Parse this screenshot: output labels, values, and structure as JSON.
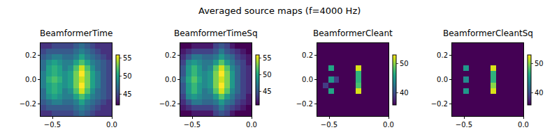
{
  "title": "Averaged source maps (f=4000 Hz)",
  "chart_data": [
    {
      "type": "heatmap",
      "title": "BeamformerTime",
      "color": "Viridis",
      "x": [
        -0.577,
        -0.531,
        -0.485,
        -0.438,
        -0.392,
        -0.346,
        -0.3,
        -0.254,
        -0.208,
        -0.162,
        -0.115,
        -0.069,
        -0.023
      ],
      "y": [
        -0.277,
        -0.231,
        -0.185,
        -0.138,
        -0.092,
        -0.046,
        0,
        0.046,
        0.092,
        0.138,
        0.185,
        0.231,
        0.277
      ],
      "xlim": [
        -0.6,
        0
      ],
      "ylim": [
        -0.3,
        0.3
      ],
      "xticks": [
        {
          "value": -0.5,
          "label": "−0.5"
        },
        {
          "value": 0,
          "label": "0.0"
        }
      ],
      "yticks": [
        {
          "value": -0.2,
          "label": "−0.2"
        },
        {
          "value": 0,
          "label": "0.0"
        },
        0.2
      ],
      "zlim": [
        42,
        56
      ],
      "zticks": [
        45,
        50,
        55
      ],
      "z": [
        [
          44,
          44,
          45,
          45,
          45,
          45,
          46,
          47,
          46,
          45,
          44,
          44,
          44
        ],
        [
          45,
          46,
          46,
          46,
          46,
          46,
          47,
          48,
          47,
          46,
          45,
          44,
          44
        ],
        [
          46,
          47,
          48,
          48,
          47,
          47,
          48,
          50,
          48,
          47,
          46,
          45,
          44
        ],
        [
          47,
          49,
          50,
          49,
          48,
          48,
          50,
          52,
          50,
          48,
          47,
          46,
          45
        ],
        [
          47,
          50,
          51,
          50,
          48,
          49,
          52,
          55,
          52,
          49,
          47,
          46,
          45
        ],
        [
          48,
          50,
          51,
          50,
          49,
          50,
          53,
          56,
          53,
          50,
          48,
          46,
          45
        ],
        [
          48,
          51,
          52,
          51,
          49,
          50,
          53,
          55,
          53,
          50,
          48,
          46,
          45
        ],
        [
          48,
          50,
          51,
          50,
          49,
          50,
          53,
          56,
          53,
          50,
          48,
          46,
          45
        ],
        [
          47,
          50,
          51,
          50,
          48,
          49,
          52,
          55,
          52,
          49,
          47,
          46,
          45
        ],
        [
          47,
          49,
          50,
          49,
          48,
          48,
          50,
          52,
          50,
          48,
          47,
          46,
          45
        ],
        [
          46,
          47,
          48,
          48,
          47,
          47,
          48,
          50,
          48,
          47,
          46,
          45,
          44
        ],
        [
          45,
          46,
          46,
          46,
          46,
          46,
          47,
          48,
          47,
          46,
          45,
          44,
          44
        ],
        [
          44,
          44,
          45,
          45,
          45,
          45,
          46,
          47,
          46,
          45,
          44,
          44,
          44
        ]
      ]
    },
    {
      "type": "heatmap",
      "title": "BeamformerTimeSq",
      "color": "Viridis",
      "x": [
        -0.577,
        -0.531,
        -0.485,
        -0.438,
        -0.392,
        -0.346,
        -0.3,
        -0.254,
        -0.208,
        -0.162,
        -0.115,
        -0.069,
        -0.023
      ],
      "y": [
        -0.277,
        -0.231,
        -0.185,
        -0.138,
        -0.092,
        -0.046,
        0,
        0.046,
        0.092,
        0.138,
        0.185,
        0.231,
        0.277
      ],
      "xlim": [
        -0.6,
        0
      ],
      "ylim": [
        -0.3,
        0.3
      ],
      "xticks": [
        {
          "value": -0.5,
          "label": "−0.5"
        },
        {
          "value": 0,
          "label": "0.0"
        }
      ],
      "yticks": [
        {
          "value": -0.2,
          "label": "−0.2"
        },
        {
          "value": 0,
          "label": "0.0"
        },
        0.2
      ],
      "zlim": [
        41,
        56
      ],
      "zticks": [
        45,
        50,
        55
      ],
      "z": [
        [
          41,
          41,
          42,
          42,
          42,
          42,
          44,
          45,
          44,
          42,
          41,
          41,
          41
        ],
        [
          42,
          43,
          44,
          44,
          44,
          44,
          45,
          47,
          45,
          44,
          43,
          42,
          41
        ],
        [
          43,
          45,
          47,
          47,
          46,
          46,
          47,
          49,
          47,
          46,
          44,
          43,
          42
        ],
        [
          44,
          48,
          49,
          48,
          47,
          47,
          49,
          52,
          49,
          47,
          45,
          44,
          42
        ],
        [
          45,
          49,
          51,
          49,
          47,
          48,
          52,
          55,
          52,
          48,
          46,
          44,
          43
        ],
        [
          45,
          49,
          51,
          49,
          48,
          49,
          53,
          56,
          53,
          49,
          46,
          44,
          43
        ],
        [
          46,
          50,
          52,
          50,
          48,
          49,
          53,
          55,
          53,
          49,
          46,
          44,
          43
        ],
        [
          45,
          49,
          51,
          49,
          48,
          49,
          53,
          56,
          53,
          49,
          46,
          44,
          43
        ],
        [
          45,
          49,
          51,
          49,
          47,
          48,
          52,
          55,
          52,
          48,
          46,
          44,
          43
        ],
        [
          44,
          48,
          49,
          48,
          47,
          47,
          49,
          52,
          49,
          47,
          45,
          44,
          42
        ],
        [
          43,
          45,
          47,
          47,
          46,
          46,
          47,
          49,
          47,
          46,
          44,
          43,
          42
        ],
        [
          42,
          43,
          44,
          44,
          44,
          44,
          45,
          47,
          45,
          44,
          43,
          42,
          41
        ],
        [
          41,
          41,
          42,
          42,
          42,
          42,
          44,
          45,
          44,
          42,
          41,
          41,
          41
        ]
      ]
    },
    {
      "type": "heatmap",
      "title": "BeamformerCleant",
      "color": "Viridis",
      "x": [
        -0.577,
        -0.531,
        -0.485,
        -0.438,
        -0.392,
        -0.346,
        -0.3,
        -0.254,
        -0.208,
        -0.162,
        -0.115,
        -0.069,
        -0.023
      ],
      "y": [
        -0.277,
        -0.231,
        -0.185,
        -0.138,
        -0.092,
        -0.046,
        0,
        0.046,
        0.092,
        0.138,
        0.185,
        0.231,
        0.277
      ],
      "xlim": [
        -0.6,
        0
      ],
      "ylim": [
        -0.3,
        0.3
      ],
      "xticks": [
        {
          "value": -0.5,
          "label": "−0.5"
        },
        {
          "value": 0,
          "label": "0.0"
        }
      ],
      "yticks": [
        {
          "value": -0.2,
          "label": "−0.2"
        },
        {
          "value": 0,
          "label": "0.0"
        },
        0.2
      ],
      "zlim": [
        36,
        53
      ],
      "zticks": [
        40,
        50
      ],
      "z": [
        [
          36,
          36,
          36,
          36,
          36,
          36,
          36,
          36,
          36,
          36,
          36,
          36,
          36
        ],
        [
          36,
          36,
          36,
          36,
          36,
          36,
          36,
          36,
          36,
          36,
          36,
          36,
          36
        ],
        [
          36,
          36,
          36,
          36,
          36,
          36,
          36,
          36,
          36,
          36,
          36,
          36,
          36
        ],
        [
          36,
          36,
          36,
          36,
          36,
          36,
          36,
          36,
          36,
          36,
          36,
          36,
          36
        ],
        [
          36,
          36,
          46,
          36,
          36,
          36,
          36,
          52,
          36,
          36,
          36,
          36,
          36
        ],
        [
          36,
          39,
          36,
          36,
          36,
          36,
          36,
          48,
          36,
          36,
          36,
          36,
          36
        ],
        [
          36,
          36,
          45,
          39,
          36,
          36,
          36,
          47,
          36,
          36,
          36,
          36,
          36
        ],
        [
          36,
          36,
          36,
          36,
          36,
          36,
          36,
          47,
          36,
          36,
          36,
          36,
          36
        ],
        [
          36,
          36,
          46,
          36,
          36,
          36,
          36,
          52,
          36,
          36,
          36,
          36,
          36
        ],
        [
          36,
          36,
          36,
          36,
          36,
          36,
          36,
          36,
          36,
          36,
          36,
          36,
          36
        ],
        [
          36,
          36,
          36,
          36,
          36,
          36,
          36,
          36,
          36,
          36,
          36,
          36,
          36
        ],
        [
          36,
          36,
          36,
          36,
          36,
          36,
          36,
          36,
          36,
          36,
          36,
          36,
          36
        ],
        [
          36,
          36,
          36,
          36,
          36,
          36,
          36,
          36,
          36,
          36,
          36,
          36,
          36
        ]
      ]
    },
    {
      "type": "heatmap",
      "title": "BeamformerCleantSq",
      "color": "Viridis",
      "x": [
        -0.577,
        -0.531,
        -0.485,
        -0.438,
        -0.392,
        -0.346,
        -0.3,
        -0.254,
        -0.208,
        -0.162,
        -0.115,
        -0.069,
        -0.023
      ],
      "y": [
        -0.277,
        -0.231,
        -0.185,
        -0.138,
        -0.092,
        -0.046,
        0,
        0.046,
        0.092,
        0.138,
        0.185,
        0.231,
        0.277
      ],
      "xlim": [
        -0.6,
        0
      ],
      "ylim": [
        -0.3,
        0.3
      ],
      "xticks": [
        {
          "value": -0.5,
          "label": "−0.5"
        },
        {
          "value": 0,
          "label": "0.0"
        }
      ],
      "yticks": [
        {
          "value": -0.2,
          "label": "−0.2"
        },
        {
          "value": 0,
          "label": "0.0"
        },
        0.2
      ],
      "zlim": [
        36,
        53
      ],
      "zticks": [
        40,
        50
      ],
      "z": [
        [
          36,
          36,
          36,
          36,
          36,
          36,
          36,
          36,
          36,
          36,
          36,
          36,
          36
        ],
        [
          36,
          36,
          36,
          36,
          36,
          36,
          36,
          36,
          36,
          36,
          36,
          36,
          36
        ],
        [
          36,
          36,
          36,
          36,
          36,
          36,
          36,
          36,
          36,
          36,
          36,
          36,
          36
        ],
        [
          36,
          36,
          36,
          36,
          36,
          36,
          36,
          36,
          36,
          36,
          36,
          36,
          36
        ],
        [
          36,
          36,
          45,
          36,
          36,
          36,
          36,
          52,
          36,
          36,
          36,
          36,
          36
        ],
        [
          36,
          36,
          36,
          36,
          36,
          36,
          36,
          50,
          36,
          36,
          36,
          36,
          36
        ],
        [
          36,
          36,
          44,
          36,
          36,
          36,
          36,
          47,
          36,
          36,
          36,
          36,
          36
        ],
        [
          36,
          36,
          36,
          36,
          36,
          36,
          36,
          47,
          36,
          36,
          36,
          36,
          36
        ],
        [
          36,
          36,
          45,
          36,
          36,
          36,
          36,
          52,
          36,
          36,
          36,
          36,
          36
        ],
        [
          36,
          36,
          36,
          36,
          36,
          36,
          36,
          36,
          36,
          36,
          36,
          36,
          36
        ],
        [
          36,
          36,
          36,
          36,
          36,
          36,
          36,
          36,
          36,
          36,
          36,
          36,
          36
        ],
        [
          36,
          36,
          36,
          36,
          36,
          36,
          36,
          36,
          36,
          36,
          36,
          36,
          36
        ],
        [
          36,
          36,
          36,
          36,
          36,
          36,
          36,
          36,
          36,
          36,
          36,
          36,
          36
        ]
      ]
    }
  ]
}
